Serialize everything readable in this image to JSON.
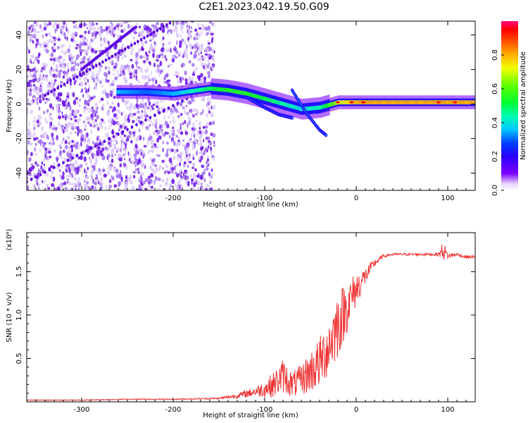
{
  "figure": {
    "title": "C2E1.2023.042.19.50.G09"
  },
  "chart_data": [
    {
      "type": "heatmap",
      "xlabel": "Height of straight line (km)",
      "ylabel": "Frequency (Hz)",
      "xlim": [
        -360,
        130
      ],
      "ylim": [
        -50,
        48
      ],
      "xticks": [
        -300,
        -200,
        -100,
        0,
        100
      ],
      "yticks": [
        -40,
        -20,
        0,
        20,
        40
      ],
      "colorbar": {
        "label": "Normalized spectral amplitude",
        "ticks": [
          0.0,
          0.2,
          0.4,
          0.6,
          0.8
        ],
        "range": [
          0,
          1
        ]
      },
      "spectral_line": {
        "x": [
          -260,
          -230,
          -200,
          -160,
          -140,
          -120,
          -100,
          -80,
          -60,
          -40,
          -20,
          0,
          50,
          100,
          130
        ],
        "y": [
          7,
          7,
          6,
          9,
          8,
          6,
          3,
          0,
          -3,
          -2,
          1,
          1,
          1,
          1,
          1
        ],
        "amplitude": [
          0.35,
          0.3,
          0.35,
          0.5,
          0.55,
          0.55,
          0.5,
          0.45,
          0.4,
          0.45,
          0.7,
          0.8,
          0.8,
          0.8,
          0.8
        ]
      },
      "grid": false
    },
    {
      "type": "line",
      "xlabel": "Height of straight line (km)",
      "ylabel": "SNR (10 * v/v)",
      "yunit": "(x10⁴)",
      "xlim": [
        -360,
        130
      ],
      "ylim": [
        0,
        1.95
      ],
      "xticks": [
        -300,
        -200,
        -100,
        0,
        100
      ],
      "yticks": [
        0.5,
        1.0,
        1.5
      ],
      "yticklabels": [
        "0.5",
        "1.0",
        "1.5"
      ],
      "series": [
        {
          "color": "#ee3333",
          "x": [
            -360,
            -300,
            -250,
            -200,
            -150,
            -130,
            -110,
            -100,
            -90,
            -80,
            -70,
            -60,
            -50,
            -40,
            -30,
            -20,
            -10,
            0,
            10,
            20,
            30,
            40,
            50,
            60,
            70,
            80,
            90,
            95,
            100,
            110,
            120,
            130
          ],
          "y": [
            0.02,
            0.02,
            0.03,
            0.03,
            0.04,
            0.07,
            0.12,
            0.15,
            0.2,
            0.3,
            0.2,
            0.25,
            0.35,
            0.45,
            0.65,
            0.9,
            1.1,
            1.3,
            1.45,
            1.6,
            1.68,
            1.7,
            1.7,
            1.7,
            1.7,
            1.7,
            1.7,
            1.75,
            1.68,
            1.7,
            1.67,
            1.67
          ],
          "noise": [
            0.005,
            0.005,
            0.006,
            0.006,
            0.01,
            0.03,
            0.06,
            0.1,
            0.15,
            0.2,
            0.15,
            0.18,
            0.25,
            0.3,
            0.35,
            0.4,
            0.3,
            0.2,
            0.1,
            0.05,
            0.02,
            0.015,
            0.015,
            0.015,
            0.015,
            0.015,
            0.02,
            0.12,
            0.03,
            0.02,
            0.02,
            0.02
          ]
        }
      ],
      "grid": false
    }
  ]
}
